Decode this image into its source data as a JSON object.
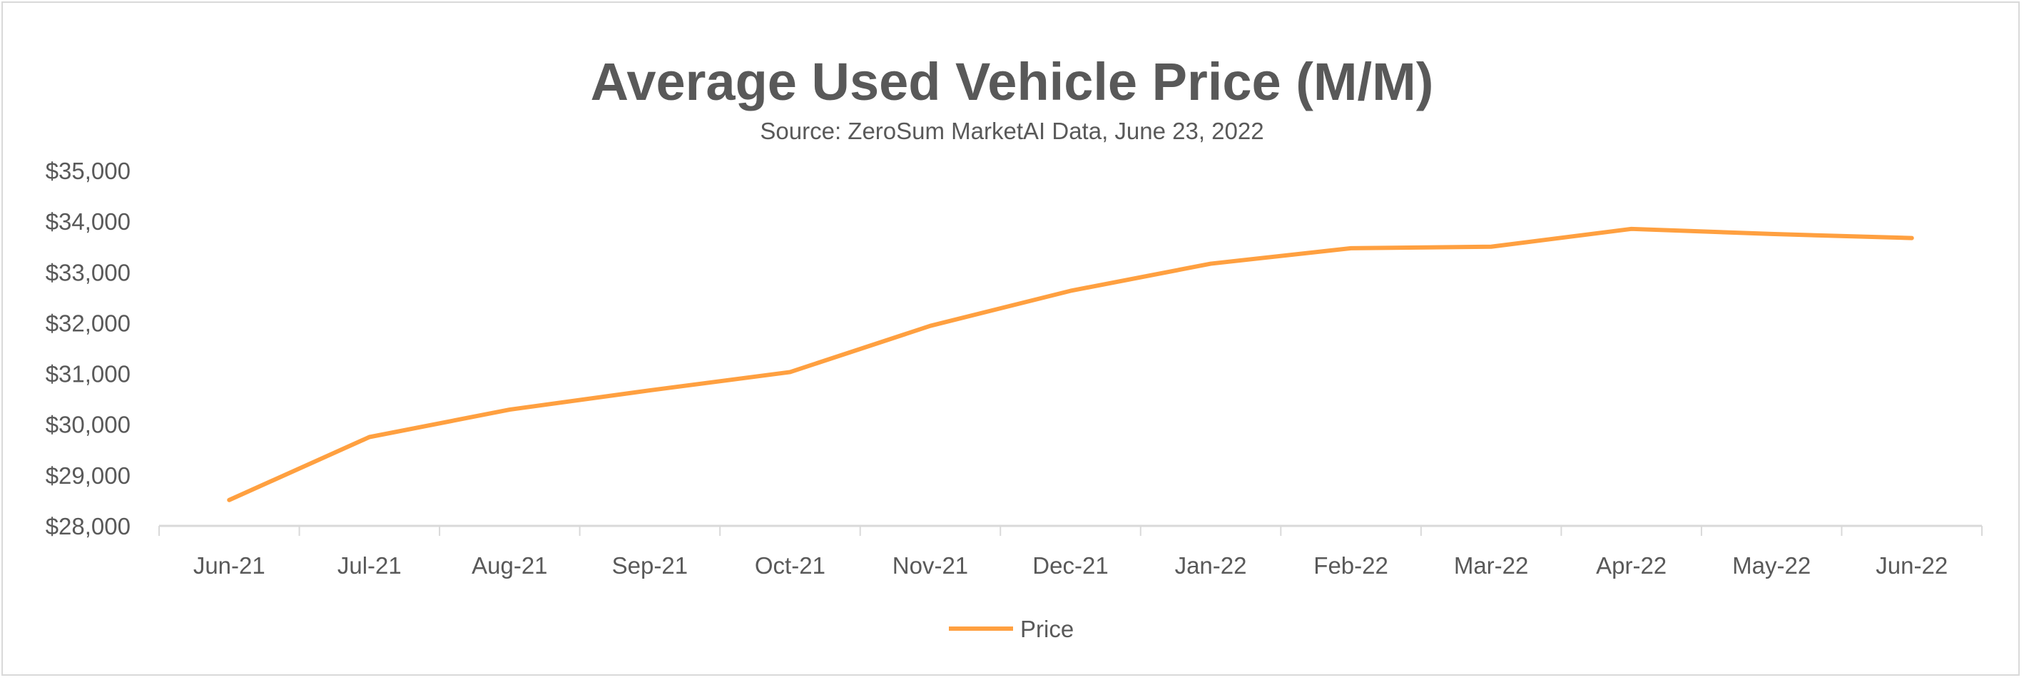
{
  "chart_data": {
    "type": "line",
    "title": "Average Used Vehicle Price (M/M)",
    "subtitle": "Source: ZeroSum MarketAI Data, June 23, 2022",
    "xlabel": "",
    "ylabel": "",
    "categories": [
      "Jun-21",
      "Jul-21",
      "Aug-21",
      "Sep-21",
      "Oct-21",
      "Nov-21",
      "Dec-21",
      "Jan-22",
      "Feb-22",
      "Mar-22",
      "Apr-22",
      "May-22",
      "Jun-22"
    ],
    "series": [
      {
        "name": "Price",
        "color": "#FFA040",
        "values": [
          28510,
          29750,
          30290,
          30670,
          31030,
          31940,
          32630,
          33165,
          33470,
          33500,
          33850,
          33750,
          33670
        ]
      }
    ],
    "ylim": [
      28000,
      35000
    ],
    "yticks": [
      28000,
      29000,
      30000,
      31000,
      32000,
      33000,
      34000,
      35000
    ],
    "ytick_labels": [
      "$28,000",
      "$29,000",
      "$30,000",
      "$31,000",
      "$32,000",
      "$33,000",
      "$34,000",
      "$35,000"
    ],
    "grid": false,
    "legend": "bottom"
  }
}
